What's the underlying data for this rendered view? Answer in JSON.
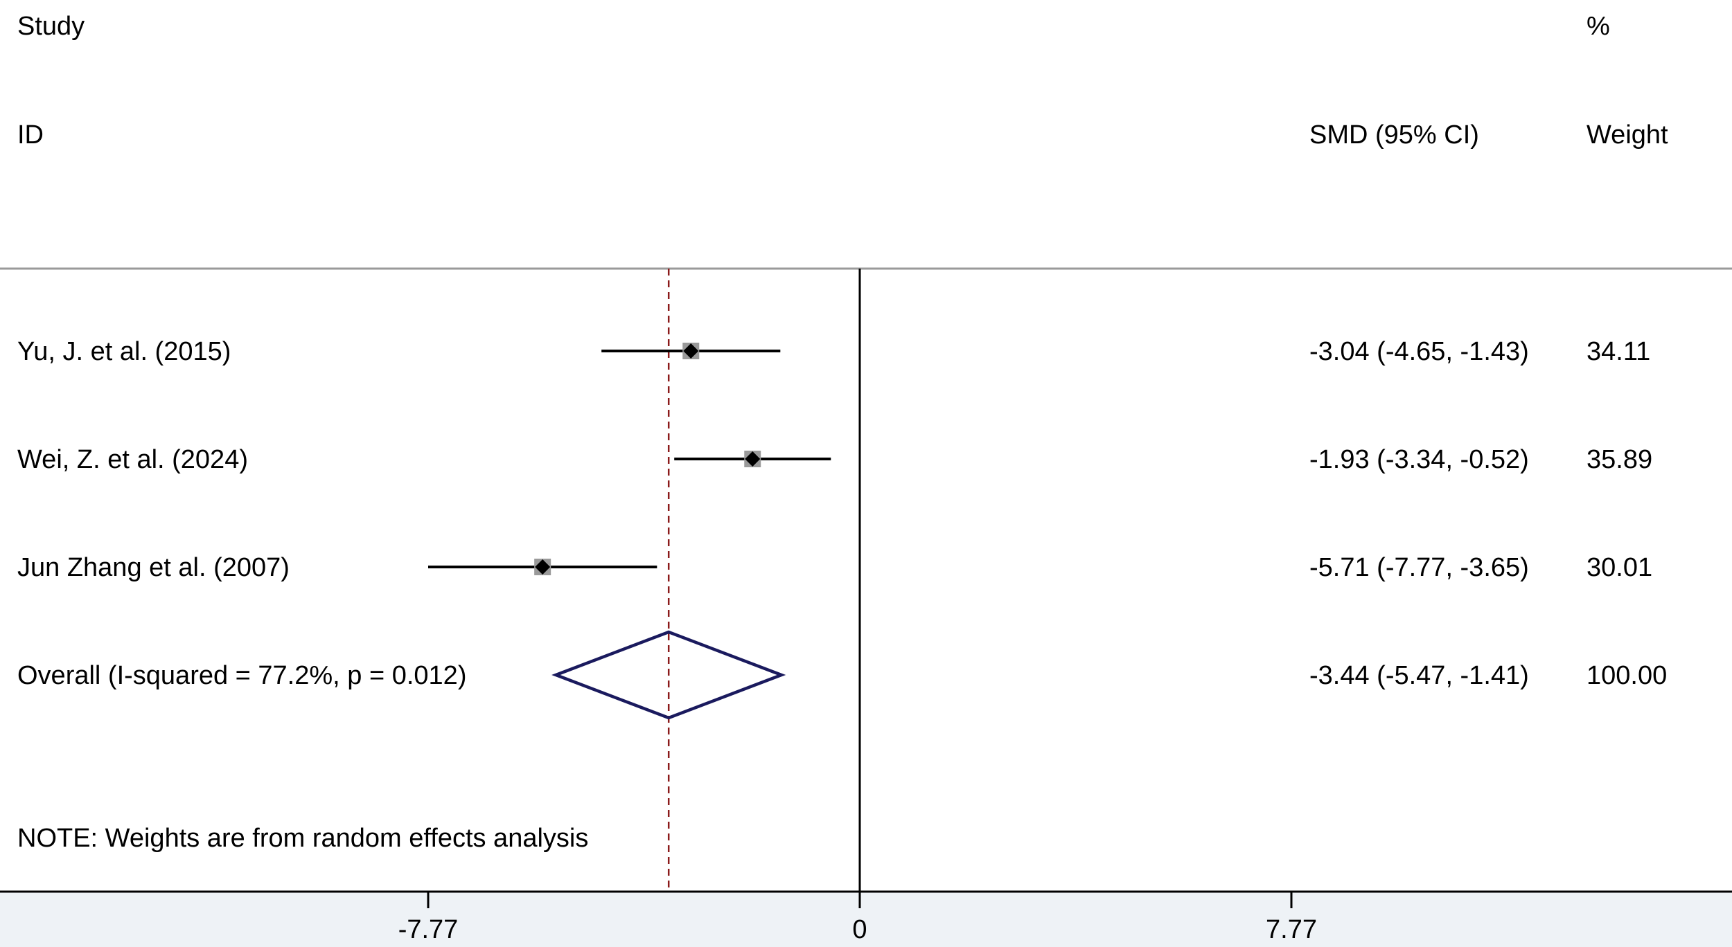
{
  "header": {
    "study": "Study",
    "id": "ID",
    "effect": "SMD (95% CI)",
    "pct": "%",
    "weight": "Weight"
  },
  "note": "NOTE: Weights are from random effects analysis",
  "colors": {
    "study_line": "#000000",
    "weight_box": "#9a9a9a",
    "diamond": "#1a1a5e",
    "reference_line": "#8b1a1a",
    "divider": "#9a9a9a",
    "background": "#ffffff",
    "outer_background": "#eef2f6"
  },
  "chart_data": {
    "type": "forest",
    "xlim": [
      -7.77,
      7.77
    ],
    "x_ticks": [
      -7.77,
      0,
      7.77
    ],
    "x_tick_labels": [
      "-7.77",
      "0",
      "7.77"
    ],
    "null_line": 0,
    "overall_reference_line": -3.44,
    "studies": [
      {
        "label": "Yu, J. et al. (2015)",
        "smd": -3.04,
        "ci_low": -4.65,
        "ci_high": -1.43,
        "ci_text": "-3.04 (-4.65, -1.43)",
        "weight": 34.11,
        "weight_text": "34.11"
      },
      {
        "label": "Wei, Z. et al. (2024)",
        "smd": -1.93,
        "ci_low": -3.34,
        "ci_high": -0.52,
        "ci_text": "-1.93 (-3.34, -0.52)",
        "weight": 35.89,
        "weight_text": "35.89"
      },
      {
        "label": "Jun Zhang et al. (2007)",
        "smd": -5.71,
        "ci_low": -7.77,
        "ci_high": -3.65,
        "ci_text": "-5.71 (-7.77, -3.65)",
        "weight": 30.01,
        "weight_text": "30.01"
      }
    ],
    "overall": {
      "label": "Overall  (I-squared = 77.2%, p = 0.012)",
      "smd": -3.44,
      "ci_low": -5.47,
      "ci_high": -1.41,
      "ci_text": "-3.44 (-5.47, -1.41)",
      "weight_text": "100.00"
    }
  }
}
